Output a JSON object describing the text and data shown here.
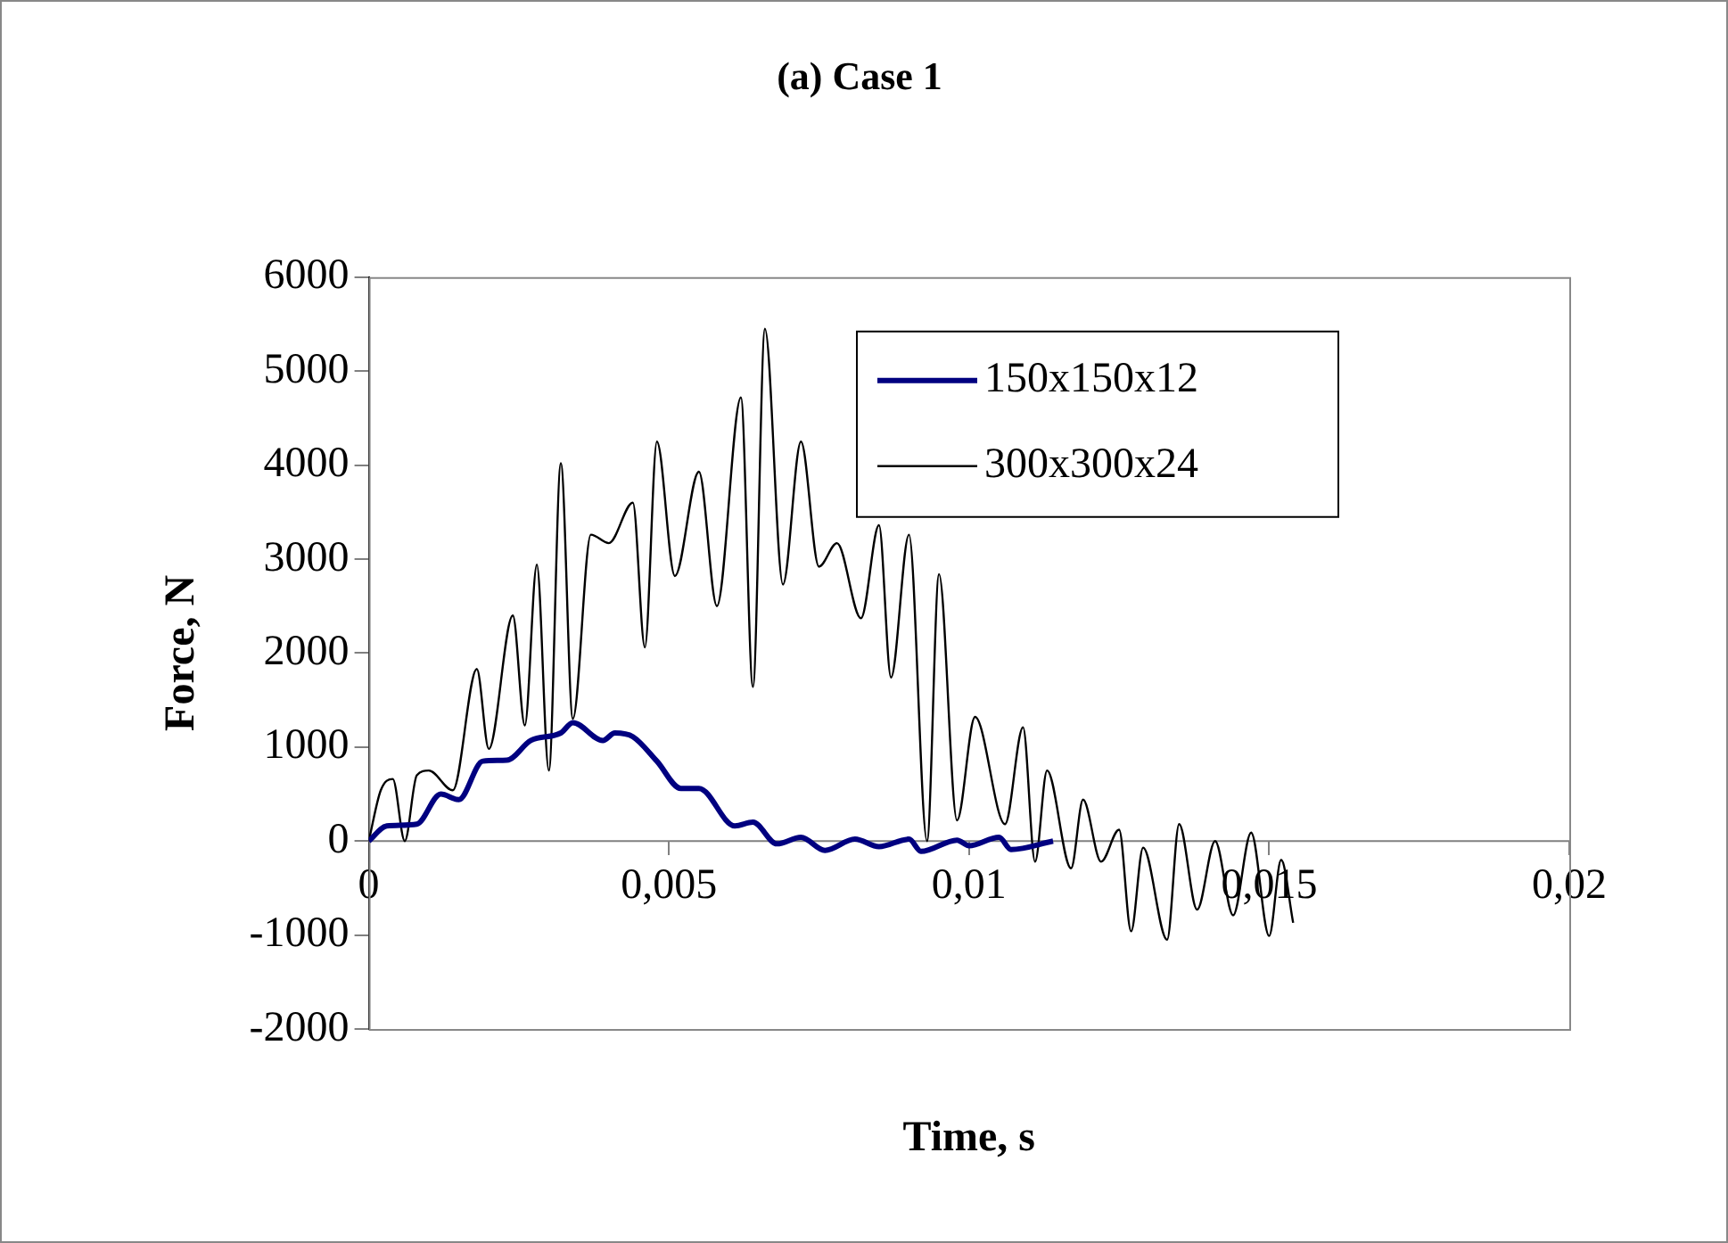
{
  "chart_data": {
    "type": "line",
    "title": "(a) Case 1",
    "xlabel": "Time, s",
    "ylabel": "Force, N",
    "xlim": [
      0,
      0.02
    ],
    "xticks": [
      0,
      {
        "value": 0.005,
        "label": "0,005"
      },
      {
        "value": 0.01,
        "label": "0,01"
      },
      {
        "value": 0.015,
        "label": "0,015"
      },
      {
        "value": 0.02,
        "label": "0,02"
      }
    ],
    "ylim": [
      -2000,
      6000
    ],
    "yticks": [
      -2000,
      -1000,
      0,
      1000,
      2000,
      3000,
      4000,
      5000,
      6000
    ],
    "grid": false,
    "legend": "top right",
    "marker": "none",
    "line_style": "solid",
    "series": [
      {
        "name": "150x150x12",
        "color": "#000080",
        "x": [
          0,
          0.0003,
          0.0008,
          0.0012,
          0.0015,
          0.0019,
          0.0023,
          0.0027,
          0.0032,
          0.0034,
          0.0039,
          0.0041,
          0.0044,
          0.0048,
          0.0052,
          0.0055,
          0.0061,
          0.0064,
          0.0068,
          0.0072,
          0.0076,
          0.0081,
          0.0085,
          0.009,
          0.0092,
          0.0098,
          0.01,
          0.0105,
          0.0107,
          0.0114
        ],
        "values": [
          0,
          160,
          180,
          500,
          440,
          850,
          860,
          1070,
          1150,
          1260,
          1070,
          1150,
          1110,
          850,
          560,
          560,
          160,
          200,
          -30,
          40,
          -100,
          20,
          -60,
          20,
          -110,
          10,
          -50,
          40,
          -90,
          0
        ]
      },
      {
        "name": "300x300x24",
        "color": "#000000",
        "x": [
          0,
          0.0002,
          0.0004,
          0.0006,
          0.0008,
          0.001,
          0.0014,
          0.0018,
          0.002,
          0.0024,
          0.0026,
          0.0028,
          0.003,
          0.0032,
          0.0034,
          0.0037,
          0.004,
          0.0044,
          0.0046,
          0.0048,
          0.0051,
          0.0055,
          0.0058,
          0.0062,
          0.0064,
          0.0066,
          0.0069,
          0.0072,
          0.0075,
          0.0078,
          0.0082,
          0.0085,
          0.0087,
          0.009,
          0.0093,
          0.0095,
          0.0098,
          0.0101,
          0.0106,
          0.0109,
          0.0111,
          0.0113,
          0.0117,
          0.0119,
          0.0122,
          0.0125,
          0.0127,
          0.0129,
          0.0133,
          0.0135,
          0.0138,
          0.0141,
          0.0144,
          0.0147,
          0.015,
          0.0152,
          0.0154
        ],
        "values": [
          0,
          540,
          660,
          0,
          700,
          750,
          540,
          1830,
          980,
          2400,
          1230,
          2940,
          750,
          4020,
          1300,
          3260,
          3170,
          3600,
          2060,
          4250,
          2820,
          3930,
          2500,
          4720,
          1640,
          5450,
          2730,
          4250,
          2920,
          3170,
          2370,
          3360,
          1740,
          3260,
          0,
          2840,
          220,
          1320,
          180,
          1210,
          -220,
          750,
          -290,
          440,
          -220,
          120,
          -960,
          -70,
          -1050,
          180,
          -730,
          0,
          -790,
          90,
          -1010,
          -200,
          -870
        ]
      }
    ]
  }
}
